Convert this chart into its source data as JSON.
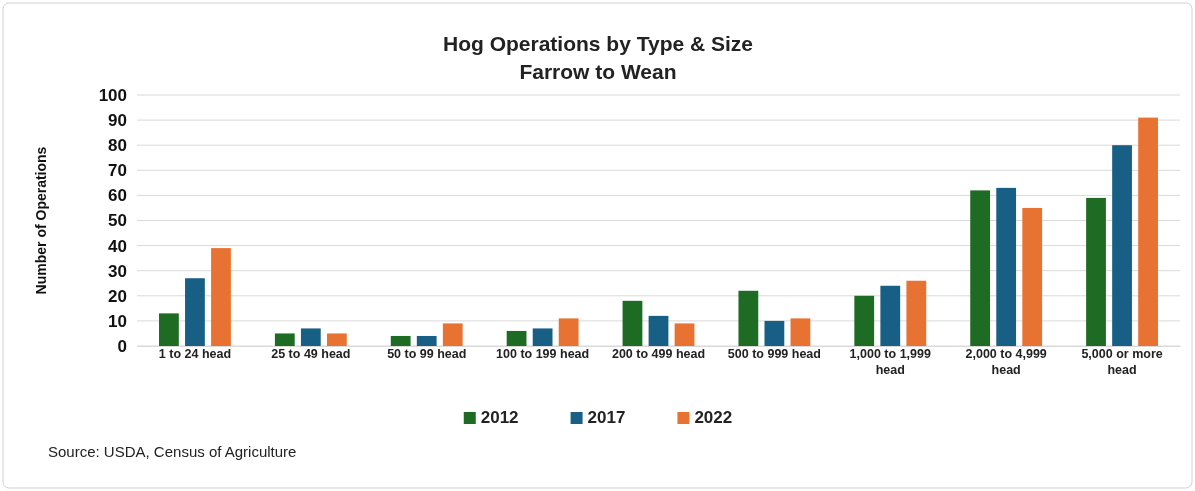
{
  "chart_data": {
    "type": "bar",
    "title": "Hog Operations by Type & Size",
    "subtitle": "Farrow to Wean",
    "ylabel": "Number of Operations",
    "categories": [
      "1 to 24 head",
      "25 to 49 head",
      "50 to 99 head",
      "100 to 199 head",
      "200 to 499 head",
      "500 to 999 head",
      "1,000 to 1,999 head",
      "2,000 to 4,999 head",
      "5,000 or more head"
    ],
    "series": [
      {
        "name": "2012",
        "color": "#1e6b24",
        "values": [
          13,
          5,
          4,
          6,
          18,
          22,
          20,
          62,
          59
        ]
      },
      {
        "name": "2017",
        "color": "#185f85",
        "values": [
          27,
          7,
          4,
          7,
          12,
          10,
          24,
          63,
          80
        ]
      },
      {
        "name": "2022",
        "color": "#e87232",
        "values": [
          39,
          5,
          9,
          11,
          9,
          11,
          26,
          55,
          91
        ]
      }
    ],
    "ylim": [
      0,
      100
    ],
    "yticks": [
      0,
      10,
      20,
      30,
      40,
      50,
      60,
      70,
      80,
      90,
      100
    ],
    "grid": "y",
    "legend": "bottom",
    "annotations": [
      "Source: USDA, Census of Agriculture"
    ]
  }
}
